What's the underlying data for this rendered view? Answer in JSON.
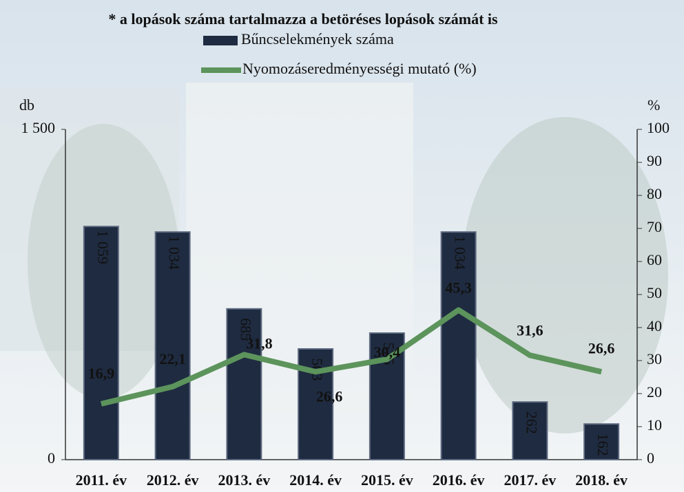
{
  "chart_data": {
    "type": "bar",
    "title": "* a lopások száma tartalmazza a betöréses lopások számát is",
    "y_label": "db",
    "y2_label": "%",
    "categories": [
      "2011. év",
      "2012. év",
      "2013. év",
      "2014. év",
      "2015. év",
      "2016. év",
      "2017. év",
      "2018. év"
    ],
    "series": [
      {
        "name": "Bűncselekmények száma",
        "type": "bar",
        "color": "#1f2b40",
        "values": [
          1059,
          1034,
          685,
          503,
          575,
          1034,
          262,
          162
        ],
        "value_labels": [
          "1 059",
          "1 034",
          "685",
          "503",
          "575",
          "1 034",
          "262",
          "162"
        ]
      },
      {
        "name": "Nyomozáseredményességi mutató (%)",
        "type": "line",
        "axis": "y2",
        "color": "#5c945c",
        "values": [
          16.9,
          22.1,
          31.8,
          26.6,
          30.4,
          45.3,
          31.6,
          26.6
        ],
        "value_labels": [
          "16,9",
          "22,1",
          "31,8",
          "26,6",
          "30,4",
          "45,3",
          "31,6",
          "26,6"
        ]
      }
    ],
    "ylim": [
      0,
      1500
    ],
    "yticks": [
      0,
      {
        "value": 1500,
        "label": "1 500"
      }
    ],
    "y2lim": [
      0,
      100
    ],
    "y2ticks": [
      0,
      10,
      20,
      30,
      40,
      50,
      60,
      70,
      80,
      90,
      100
    ]
  }
}
